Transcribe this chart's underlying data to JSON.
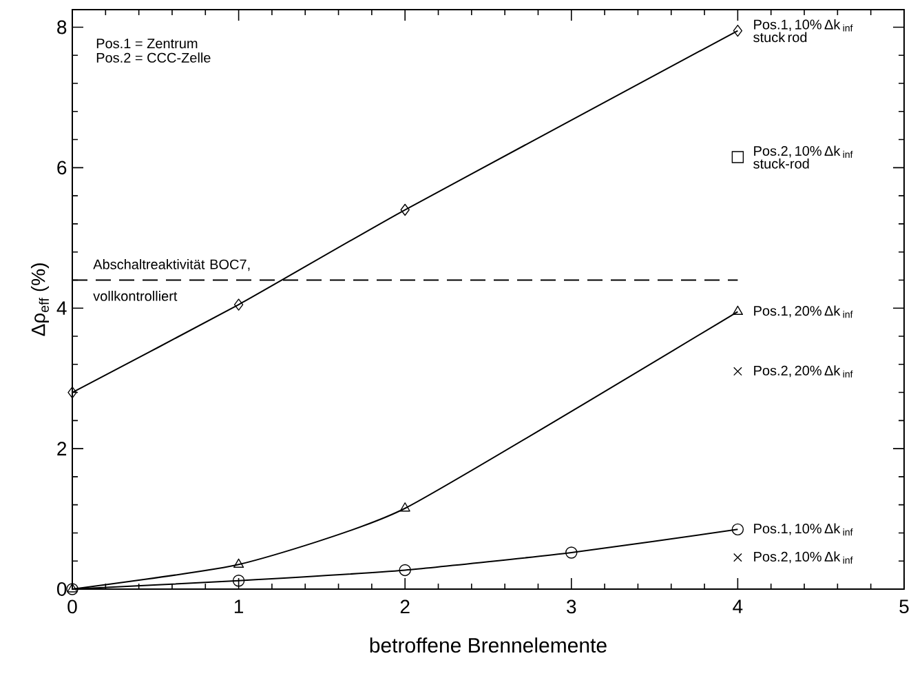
{
  "chart_data": {
    "type": "line",
    "xlabel": "betroffene Brennelemente",
    "ylabel": "Δρ$_{eff}$  (%)",
    "xlim": [
      0,
      5
    ],
    "xticks": [
      0,
      1,
      2,
      3,
      4,
      5
    ],
    "ylim": [
      0,
      8.25
    ],
    "yticks": [
      0,
      2,
      4,
      6,
      8
    ],
    "grid": false,
    "series": [
      {
        "name": "Pos.1, 10% Δk $_{inf}$ stuck rod",
        "color": "#000000",
        "marker": "diamond",
        "line_style": "solid",
        "x": [
          0,
          1,
          2,
          4
        ],
        "values": [
          2.8,
          4.05,
          5.4,
          7.95
        ]
      },
      {
        "name": "Pos.2, 10% Δk $_{inf}$ stuck-rod",
        "color": "#000000",
        "type": "scatter",
        "marker": "square",
        "x": [
          4
        ],
        "values": [
          6.15
        ]
      },
      {
        "name": "Pos.1, 20% Δk $_{inf}$",
        "color": "#000000",
        "marker": "triangle",
        "line_style": "solid",
        "x": [
          0,
          1,
          2,
          4
        ],
        "values": [
          0,
          0.35,
          1.15,
          3.95
        ]
      },
      {
        "name": "Pos.2, 20% Δk $_{inf}$",
        "color": "#000000",
        "type": "scatter",
        "marker": "cross",
        "x": [
          4
        ],
        "values": [
          3.1
        ]
      },
      {
        "name": "Pos.1, 10% Δk $_{inf}$",
        "color": "#000000",
        "marker": "circle",
        "line_style": "solid",
        "x": [
          0,
          1,
          2,
          3,
          4
        ],
        "values": [
          0,
          0.12,
          0.27,
          0.52,
          0.85
        ]
      },
      {
        "name": "Pos.2, 10% Δk $_{inf}$",
        "color": "#000000",
        "type": "scatter",
        "marker": "cross",
        "x": [
          4
        ],
        "values": [
          0.45
        ]
      }
    ],
    "ref_lines": [
      {
        "axis": "y",
        "value": 4.4,
        "label": "Abschaltreaktivität BOC7, vollkontrolliert",
        "line_style": "dashed",
        "color": "#000000"
      }
    ],
    "annotations": [
      "Pos.1 = Zentrum",
      "Pos.2 = CCC-Zelle"
    ]
  }
}
